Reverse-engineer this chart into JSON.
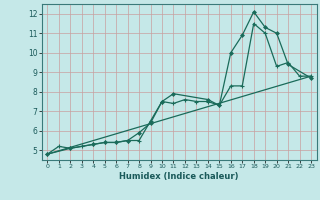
{
  "background_color": "#c5e8e8",
  "grid_color": "#b0c8c8",
  "line_color": "#1a6b5a",
  "xlabel": "Humidex (Indice chaleur)",
  "ylim": [
    4.5,
    12.5
  ],
  "xlim": [
    -0.5,
    23.5
  ],
  "yticks": [
    5,
    6,
    7,
    8,
    9,
    10,
    11,
    12
  ],
  "xticks": [
    0,
    1,
    2,
    3,
    4,
    5,
    6,
    7,
    8,
    9,
    10,
    11,
    12,
    13,
    14,
    15,
    16,
    17,
    18,
    19,
    20,
    21,
    22,
    23
  ],
  "series1_x": [
    0,
    1,
    2,
    3,
    4,
    5,
    6,
    7,
    8,
    9,
    10,
    11,
    12,
    13,
    14,
    15,
    16,
    17,
    18,
    19,
    20,
    21,
    22,
    23
  ],
  "series1_y": [
    4.8,
    5.2,
    5.1,
    5.2,
    5.3,
    5.4,
    5.4,
    5.5,
    5.5,
    6.5,
    7.5,
    7.4,
    7.6,
    7.5,
    7.5,
    7.3,
    8.3,
    8.3,
    11.5,
    11.0,
    9.3,
    9.5,
    8.8,
    8.8
  ],
  "series2_x": [
    0,
    2,
    4,
    5,
    6,
    7,
    8,
    9,
    10,
    11,
    14,
    15,
    16,
    17,
    18,
    19,
    20,
    21,
    23
  ],
  "series2_y": [
    4.8,
    5.1,
    5.3,
    5.4,
    5.4,
    5.5,
    5.9,
    6.4,
    7.5,
    7.9,
    7.6,
    7.3,
    10.0,
    10.9,
    12.1,
    11.3,
    11.0,
    9.4,
    8.7
  ],
  "series3_x": [
    0,
    23
  ],
  "series3_y": [
    4.8,
    8.8
  ]
}
